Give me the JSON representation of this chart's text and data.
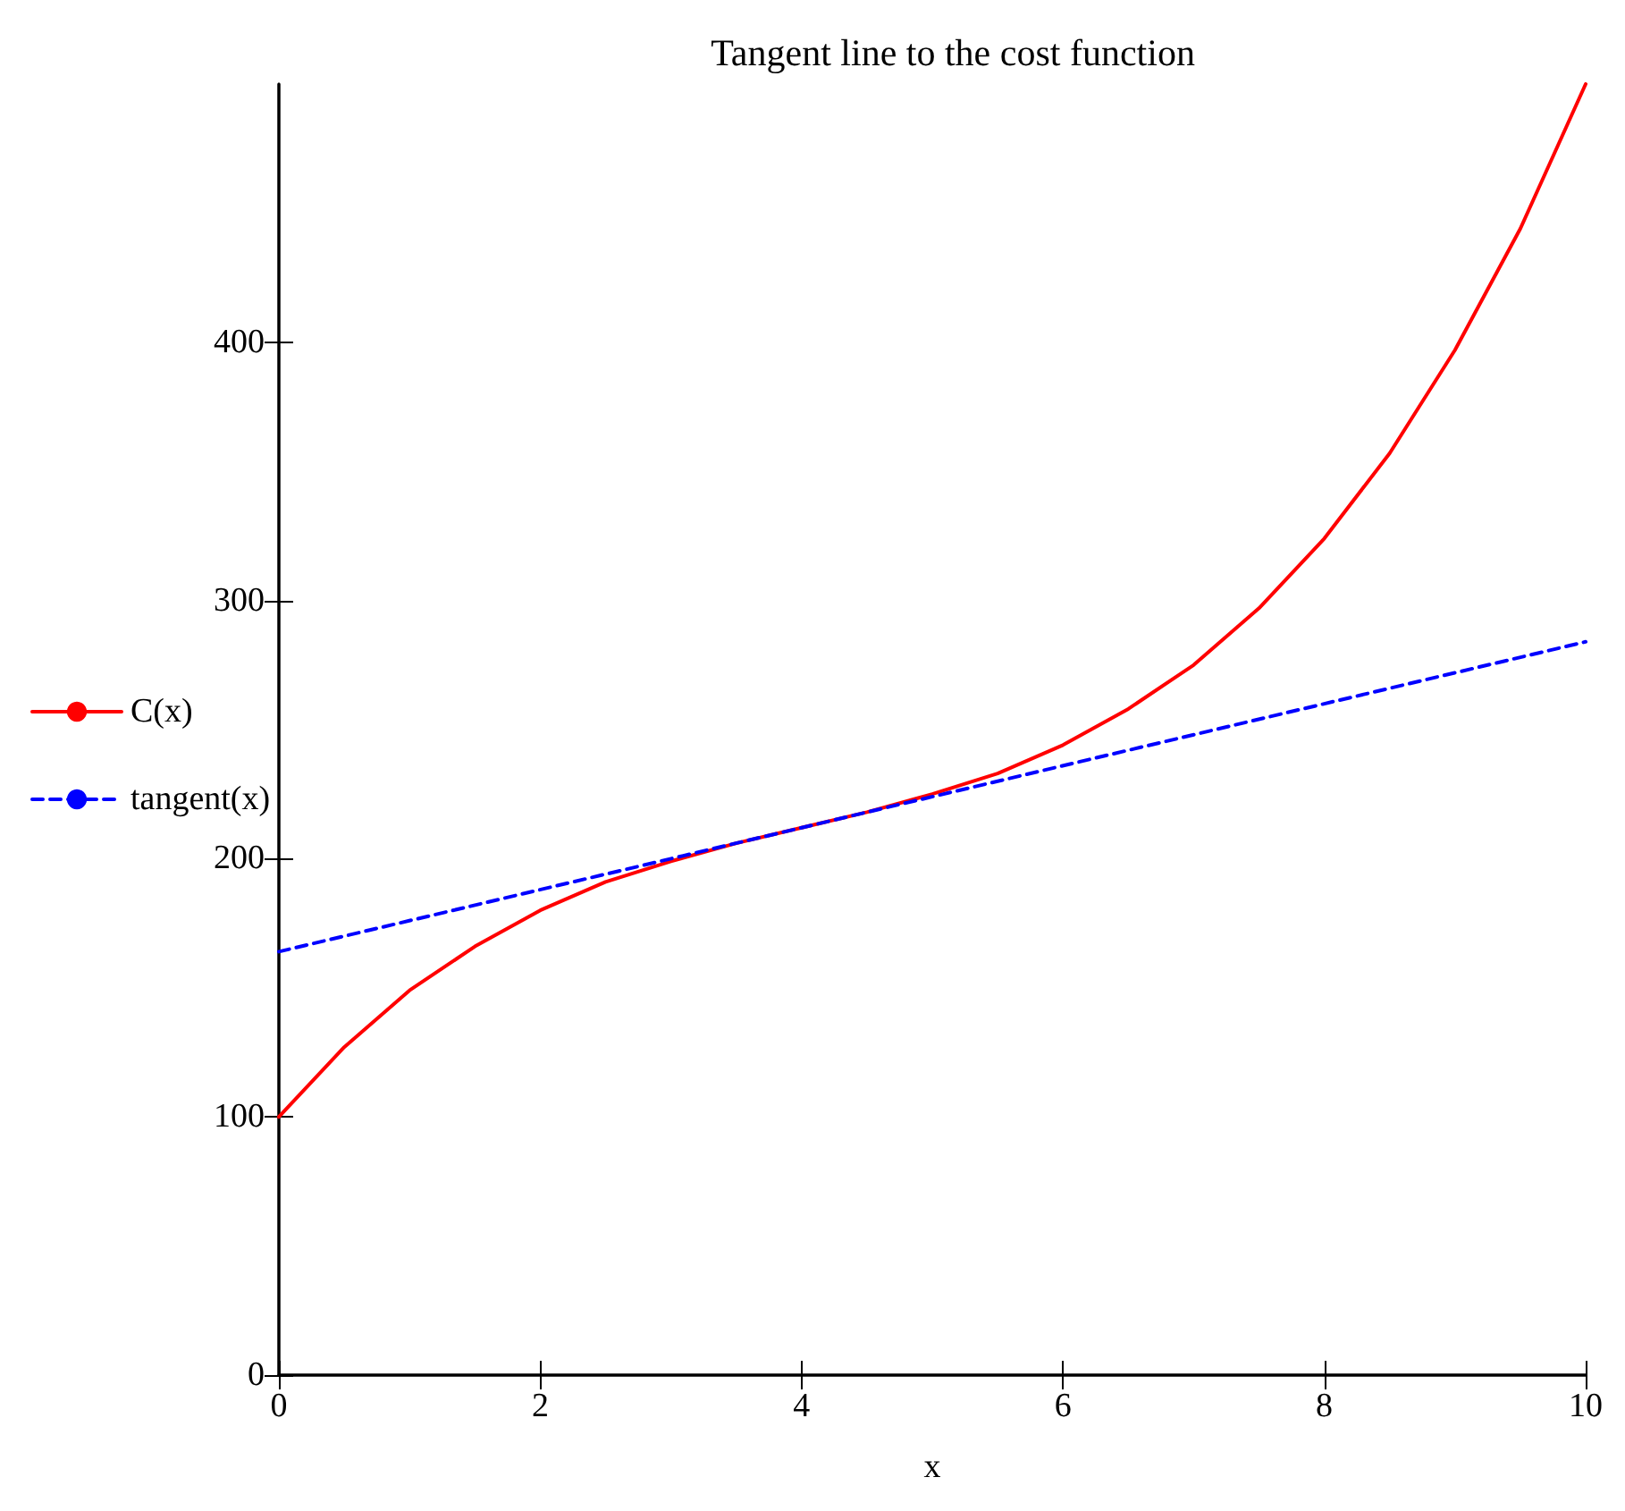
{
  "chart_data": {
    "type": "line",
    "title": "Tangent line to the cost function",
    "xlabel": "x",
    "xlim": [
      0,
      10
    ],
    "xticks": [
      0,
      2,
      4,
      6,
      8,
      10
    ],
    "ylim": [
      0,
      500
    ],
    "yticks": [
      0,
      100,
      200,
      300,
      400
    ],
    "grid": false,
    "legend": "left",
    "marker": "none",
    "series": [
      {
        "name": "C(x)",
        "color": "#ff0000",
        "line_style": "solid",
        "x": [
          0,
          0.5,
          1,
          1.5,
          2,
          2.5,
          3,
          3.5,
          4,
          4.5,
          5,
          5.5,
          6,
          6.5,
          7,
          7.5,
          8,
          8.5,
          9,
          9.5,
          10
        ],
        "values": [
          100,
          127,
          149,
          166,
          180,
          191,
          199,
          206,
          212,
          218,
          225,
          233,
          244,
          258,
          275,
          297,
          324,
          357,
          397,
          444,
          500
        ]
      },
      {
        "name": "tangent(x)",
        "color": "#0000ff",
        "line_style": "dashed",
        "x": [
          0,
          10
        ],
        "values": [
          164,
          284
        ]
      }
    ]
  }
}
